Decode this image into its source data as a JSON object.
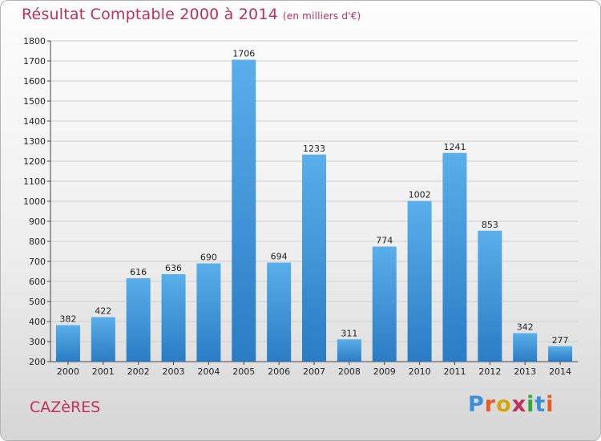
{
  "header": {
    "title": "Résultat Comptable 2000 à 2014",
    "subtitle": "(en milliers d'€)"
  },
  "footer": {
    "city": "CAZèRES",
    "brand": "Proxiti",
    "brand_colors": [
      "#3b8fd6",
      "#e85b1f",
      "#d8a311",
      "#c0305a",
      "#35a63a",
      "#3b8fd6",
      "#e85b1f"
    ]
  },
  "colors": {
    "bar_light": "#5aaeea",
    "bar_dark": "#2a7cc4",
    "title": "#c0305a",
    "grid": "#cfcfcf"
  },
  "chart_data": {
    "type": "bar",
    "categories": [
      "2000",
      "2001",
      "2002",
      "2003",
      "2004",
      "2005",
      "2006",
      "2007",
      "2008",
      "2009",
      "2010",
      "2011",
      "2012",
      "2013",
      "2014"
    ],
    "values": [
      382,
      422,
      616,
      636,
      690,
      1706,
      694,
      1233,
      311,
      774,
      1002,
      1241,
      853,
      342,
      277
    ],
    "ylim": [
      200,
      1800
    ],
    "yticks": [
      200,
      300,
      400,
      500,
      600,
      700,
      800,
      900,
      1000,
      1100,
      1200,
      1300,
      1400,
      1500,
      1600,
      1700,
      1800
    ],
    "grid": true
  }
}
